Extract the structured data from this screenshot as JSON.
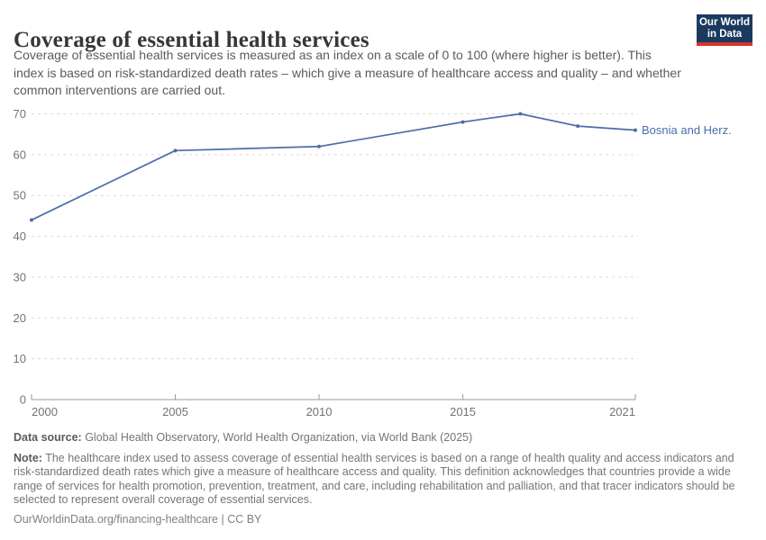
{
  "header": {
    "title": "Coverage of essential health services",
    "subtitle": "Coverage of essential health services is measured as an index on a scale of 0 to 100 (where higher is better). This index is based on risk-standardized death rates – which give a measure of healthcare access and quality – and whether common interventions are carried out."
  },
  "logo": {
    "line1": "Our World",
    "line2": "in Data",
    "bg_color": "#1b3a60",
    "accent_color": "#d7342c"
  },
  "chart_data": {
    "type": "line",
    "title": "Coverage of essential health services",
    "xlabel": "",
    "ylabel": "",
    "x": [
      2000,
      2005,
      2010,
      2015,
      2017,
      2019,
      2021
    ],
    "series": [
      {
        "name": "Bosnia and Herz.",
        "color": "#4c6da8",
        "values": [
          44,
          61,
          62,
          68,
          70,
          67,
          66
        ]
      }
    ],
    "xlim": [
      2000,
      2021
    ],
    "ylim": [
      0,
      70
    ],
    "xticks": [
      2000,
      2005,
      2010,
      2015,
      2021
    ],
    "yticks": [
      0,
      10,
      20,
      30,
      40,
      50,
      60,
      70
    ],
    "grid": "horizontal-dashed",
    "legend": "line-end-label"
  },
  "footer": {
    "data_source_label": "Data source:",
    "data_source_text": " Global Health Observatory, World Health Organization, via World Bank (2025)",
    "note_label": "Note:",
    "note_text": " The healthcare index used to assess coverage of essential health services is based on a range of health quality and access indicators and risk-standardized death rates which give a measure of healthcare access and quality. This definition acknowledges that countries provide a wide range of services for health promotion, prevention, treatment, and care, including rehabilitation and palliation, and that tracer indicators should be selected to represent overall coverage of essential services.",
    "url": "OurWorldinData.org/financing-healthcare",
    "separator": " | ",
    "license": "CC BY"
  },
  "colors": {
    "line": "#4c6da8",
    "grid": "#dadada",
    "axis": "#9a9a9a",
    "tick_label": "#737373",
    "title": "#373737",
    "subtitle": "#5b5b5b",
    "footer": "#757575"
  }
}
